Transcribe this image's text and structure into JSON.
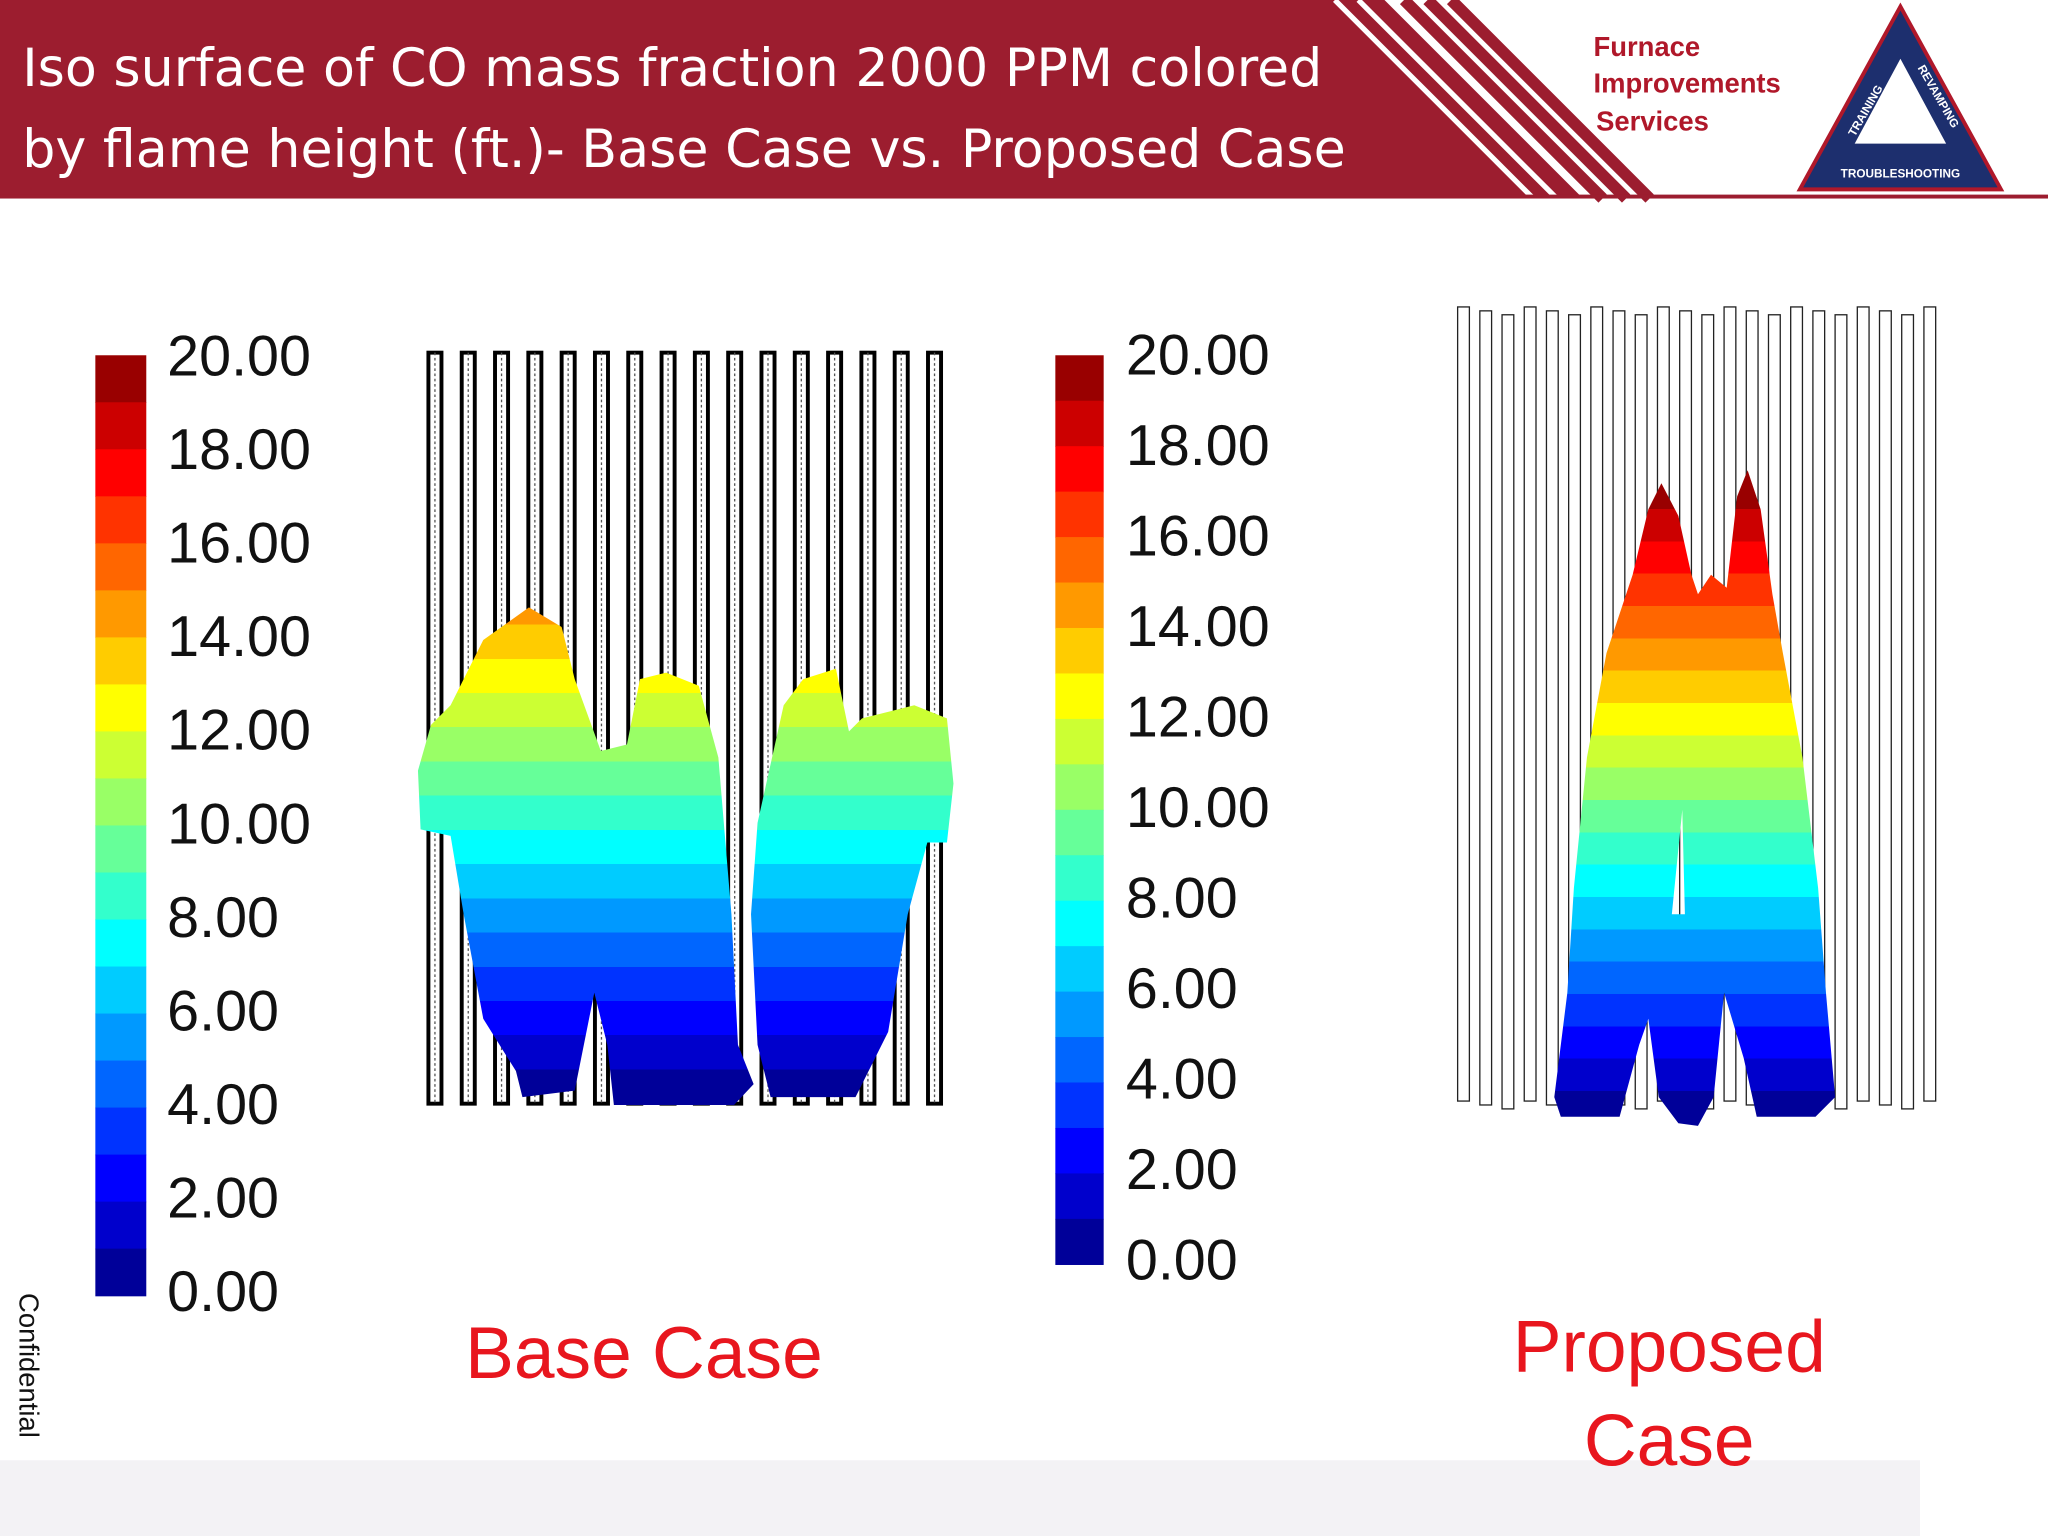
{
  "header": {
    "title": [
      "Iso surface of CO mass fraction 2000 PPM colored",
      "by flame height (ft.)- Base Case vs. Proposed Case"
    ],
    "logo": {
      "lines": [
        "Furnace",
        "Improvements",
        "Services"
      ],
      "triangle": [
        "TRAINING",
        "REVAMPING",
        "TROUBLESHOOTING"
      ]
    }
  },
  "colorbars": [
    {
      "labels": [
        "20.00",
        "18.00",
        "16.00",
        "14.00",
        "12.00",
        "10.00",
        "8.00",
        "6.00",
        "4.00",
        "2.00",
        "0.00"
      ]
    },
    {
      "labels": [
        "20.00",
        "18.00",
        "16.00",
        "14.00",
        "12.00",
        "10.00",
        "8.00",
        "6.00",
        "4.00",
        "2.00",
        "0.00"
      ]
    }
  ],
  "captions": {
    "base": "Base Case",
    "proposed": [
      "Proposed",
      "Case"
    ]
  },
  "footer": {
    "side_note": "Confidential"
  }
}
